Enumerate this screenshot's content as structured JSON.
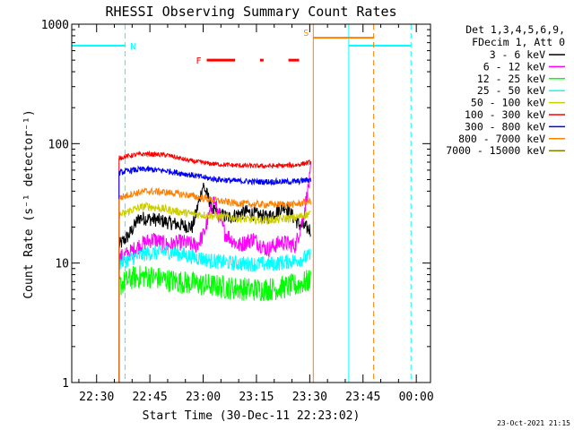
{
  "chart_data": {
    "type": "line",
    "title": "RHESSI Observing Summary Count Rates",
    "xlabel": "Start Time (30-Dec-11 22:23:02)",
    "ylabel": "Count Rate (s⁻¹ detector⁻¹)",
    "y_scale": "log",
    "ylim": [
      1,
      1000
    ],
    "xlim_minutes_from_2220": [
      3.0,
      104.0
    ],
    "x_ticks": [
      {
        "label": "22:30",
        "minute": 10
      },
      {
        "label": "22:45",
        "minute": 25
      },
      {
        "label": "23:00",
        "minute": 40
      },
      {
        "label": "23:15",
        "minute": 55
      },
      {
        "label": "23:30",
        "minute": 70
      },
      {
        "label": "23:45",
        "minute": 85
      },
      {
        "label": "00:00",
        "minute": 100
      }
    ],
    "y_ticks": [
      {
        "label": "1",
        "value": 1
      },
      {
        "label": "10",
        "value": 10
      },
      {
        "label": "100",
        "value": 100
      },
      {
        "label": "1000",
        "value": 1000
      }
    ],
    "legend_header": [
      "Det 1,3,4,5,6,9,",
      "FDecim 1, Att 0"
    ],
    "legend_position": "top-right",
    "series": [
      {
        "name": "3 - 6 keV",
        "color": "#000000",
        "x": [
          16.3,
          19,
          22,
          27,
          33,
          37,
          40,
          43,
          47,
          52,
          58,
          63,
          67,
          70.3
        ],
        "y": [
          14,
          17,
          24,
          23,
          21,
          20,
          45,
          27,
          24,
          27,
          24,
          30,
          21,
          19
        ]
      },
      {
        "name": "6 - 12 keV",
        "color": "#ff00ff",
        "x": [
          16.3,
          19,
          22,
          26,
          30,
          34,
          38,
          40,
          43,
          46,
          50,
          54,
          58,
          62,
          66,
          68,
          70,
          70.3
        ],
        "y": [
          11,
          12,
          14,
          16,
          14,
          15,
          14,
          17,
          34,
          18,
          14,
          16,
          13,
          15,
          14,
          23,
          50,
          60
        ]
      },
      {
        "name": "12 - 25 keV",
        "color": "#00ff00",
        "x": [
          16.3,
          20,
          24,
          30,
          36,
          42,
          48,
          54,
          60,
          66,
          70.3
        ],
        "y": [
          6.5,
          7.5,
          7.8,
          7.2,
          6.8,
          6.5,
          6.2,
          6.0,
          6.1,
          6.5,
          7.2
        ]
      },
      {
        "name": "25 - 50 keV",
        "color": "#00ffff",
        "x": [
          16.3,
          20,
          24,
          30,
          36,
          42,
          48,
          54,
          60,
          66,
          70.3
        ],
        "y": [
          10,
          11,
          12,
          12.5,
          11.5,
          10.5,
          10,
          9.8,
          9.9,
          10.5,
          11.5
        ]
      },
      {
        "name": "50 - 100 keV",
        "color": "#cccc00",
        "x": [
          16.3,
          20,
          24,
          30,
          36,
          42,
          48,
          54,
          60,
          66,
          70.3
        ],
        "y": [
          25,
          28,
          30,
          28,
          26,
          25,
          24,
          23,
          23,
          24,
          26
        ]
      },
      {
        "name": "100 - 300 keV",
        "color": "#ff0000",
        "x": [
          16.3,
          20,
          24,
          30,
          36,
          42,
          48,
          54,
          60,
          66,
          70.3
        ],
        "y": [
          76,
          80,
          82,
          80,
          72,
          68,
          66,
          65,
          65,
          66,
          70
        ]
      },
      {
        "name": "300 - 800 keV",
        "color": "#0000ff",
        "x": [
          16.3,
          20,
          24,
          30,
          36,
          42,
          48,
          54,
          60,
          66,
          70.3
        ],
        "y": [
          57,
          60,
          61,
          59,
          55,
          51,
          49,
          48,
          48,
          48,
          50
        ]
      },
      {
        "name": "800 - 7000 keV",
        "color": "#ff8000",
        "x": [
          16.3,
          20,
          24,
          30,
          36,
          42,
          48,
          54,
          60,
          66,
          70.3
        ],
        "y": [
          35,
          38,
          40,
          39,
          37,
          34,
          32,
          31,
          31,
          31,
          33
        ]
      },
      {
        "name": "7000 - 15000 keV",
        "color": "#808000",
        "x": [],
        "y": []
      }
    ],
    "flag_bars": [
      {
        "label": "N",
        "color": "#00ffff",
        "segments": [
          [
            3.0,
            18.0
          ],
          [
            81.0,
            98.5
          ]
        ],
        "dashed_edges": [
          18.0,
          98.5
        ],
        "solid_edges": [
          3.0,
          81.0
        ],
        "level": 660
      },
      {
        "label": "S",
        "color": "#ff8000",
        "segments": [
          [
            71.0,
            88.0
          ]
        ],
        "dashed_edges": [
          88.0
        ],
        "solid_edges": [
          71.0
        ],
        "level": 770
      },
      {
        "label": "F",
        "color": "#ff0000",
        "segments": [
          [
            41.0,
            49.0
          ],
          [
            56.0,
            57.0
          ],
          [
            64.0,
            67.0
          ]
        ],
        "dashed_edges": [],
        "solid_edges": [],
        "level": 500
      }
    ]
  },
  "footer": {
    "timestamp": "23-Oct-2021 21:15"
  }
}
